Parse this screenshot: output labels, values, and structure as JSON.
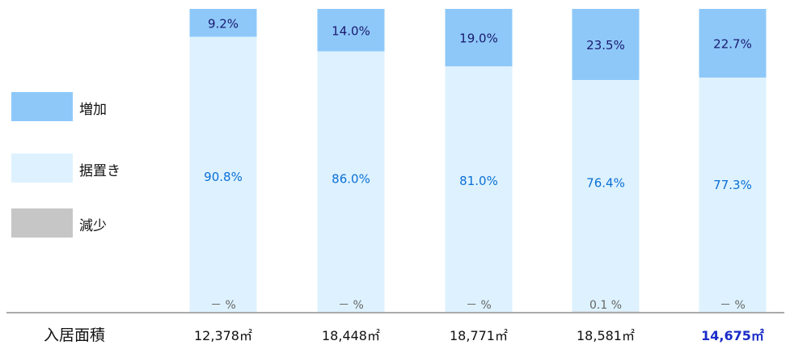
{
  "chart_data": {
    "type": "bar",
    "stacked": true,
    "normalized_percent": true,
    "categories": [
      "12,378㎡",
      "18,448㎡",
      "18,771㎡",
      "18,581㎡",
      "14,675㎡"
    ],
    "series": [
      {
        "name": "増加",
        "color": "#8ec8f9",
        "values": [
          9.2,
          14.0,
          19.0,
          23.5,
          22.7
        ],
        "labels": [
          "9.2%",
          "14.0%",
          "19.0%",
          "23.5%",
          "22.7%"
        ]
      },
      {
        "name": "据置き",
        "color": "#ddf2fe",
        "values": [
          90.8,
          86.0,
          81.0,
          76.4,
          77.3
        ],
        "labels": [
          "90.8%",
          "86.0%",
          "81.0%",
          "76.4%",
          "77.3%"
        ]
      },
      {
        "name": "減少",
        "color": "#c6c6c6",
        "values": [
          0,
          0,
          0,
          0.1,
          0
        ],
        "labels": [
          "－ %",
          "－ %",
          "－ %",
          "0.1 %",
          "－ %"
        ]
      }
    ],
    "legend_position": "left",
    "ylim": [
      0,
      100
    ]
  },
  "row_header": "入居面積",
  "area_values": [
    "12,378㎡",
    "18,448㎡",
    "18,771㎡",
    "18,581㎡",
    "14,675㎡"
  ],
  "highlight_index": 4,
  "colors": {
    "label_blue": "#0b6fd6",
    "highlight": "#1a2cc8",
    "axis": "#777777"
  }
}
